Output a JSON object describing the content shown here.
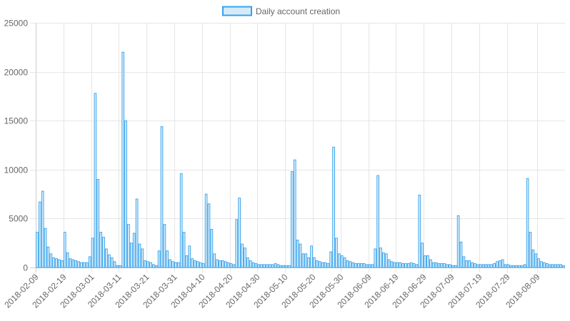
{
  "chart_data": {
    "type": "bar",
    "legend": {
      "label": "Daily account creation",
      "placement": "top-center"
    },
    "colors": {
      "bar_fill": "#d6ebf9",
      "bar_stroke": "#36a2eb",
      "grid": "#e6e6e6",
      "axis_text": "#666666"
    },
    "grid": true,
    "ylim": [
      0,
      25000
    ],
    "y_ticks": [
      "0",
      "5000",
      "10000",
      "15000",
      "20000",
      "25000"
    ],
    "x_start": "2018-02-09",
    "x_ticks": [
      "2018-02-09",
      "2018-02-19",
      "2018-03-01",
      "2018-03-11",
      "2018-03-21",
      "2018-03-31",
      "2018-04-10",
      "2018-04-20",
      "2018-04-30",
      "2018-05-10",
      "2018-05-20",
      "2018-05-30",
      "2018-06-09",
      "2018-06-19",
      "2018-06-29",
      "2018-07-09",
      "2018-07-19",
      "2018-07-29",
      "2018-08-09"
    ],
    "values": [
      3600,
      6700,
      7800,
      4000,
      2100,
      1400,
      1000,
      900,
      800,
      700,
      3600,
      1500,
      900,
      800,
      700,
      600,
      500,
      500,
      500,
      1100,
      3000,
      17800,
      9000,
      3600,
      3100,
      1900,
      1300,
      1000,
      600,
      200,
      200,
      22000,
      15000,
      4400,
      2500,
      3500,
      7000,
      2400,
      1900,
      700,
      600,
      500,
      300,
      200,
      1700,
      14400,
      4400,
      1700,
      800,
      600,
      500,
      500,
      9600,
      3600,
      1200,
      2200,
      900,
      700,
      600,
      500,
      400,
      7500,
      6500,
      3900,
      1400,
      800,
      700,
      700,
      600,
      500,
      400,
      300,
      4900,
      7100,
      2400,
      2000,
      1000,
      700,
      500,
      400,
      300,
      300,
      300,
      300,
      300,
      300,
      400,
      300,
      200,
      200,
      200,
      200,
      9800,
      11000,
      2800,
      2400,
      1400,
      1400,
      1000,
      2200,
      1000,
      700,
      600,
      500,
      500,
      400,
      1600,
      12300,
      3000,
      1400,
      1200,
      1000,
      700,
      600,
      500,
      400,
      400,
      400,
      400,
      300,
      300,
      300,
      1900,
      9400,
      2000,
      1500,
      1400,
      800,
      600,
      500,
      500,
      500,
      400,
      400,
      400,
      500,
      400,
      300,
      7400,
      2500,
      1200,
      1200,
      800,
      500,
      500,
      400,
      400,
      400,
      300,
      300,
      200,
      200,
      5300,
      2600,
      1100,
      700,
      700,
      500,
      400,
      300,
      300,
      300,
      300,
      300,
      300,
      400,
      600,
      700,
      800,
      300,
      300,
      200,
      200,
      200,
      200,
      200,
      300,
      9100,
      3600,
      1800,
      1400,
      900,
      600,
      500,
      400,
      300,
      300,
      300,
      300,
      300,
      200
    ]
  }
}
